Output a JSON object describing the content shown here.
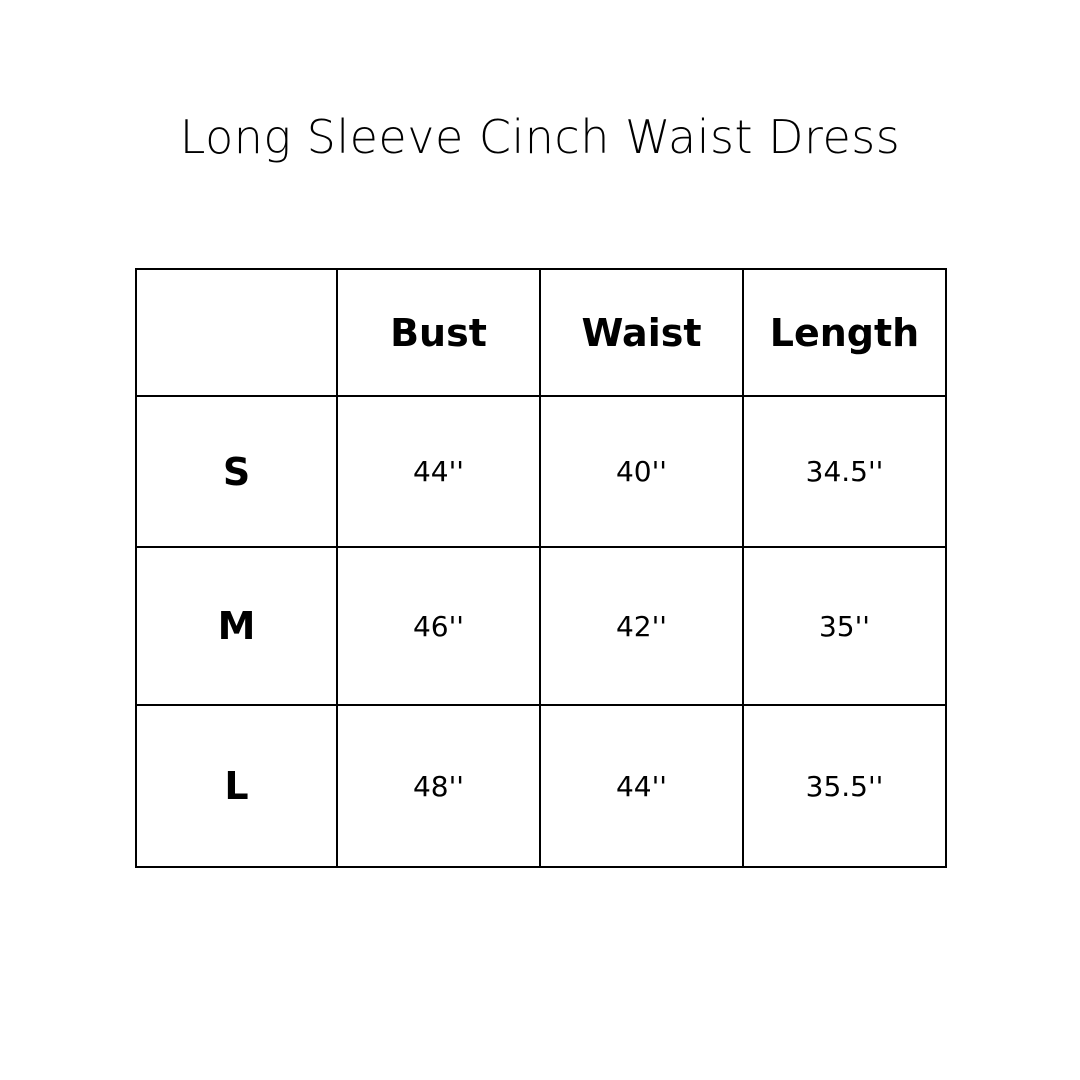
{
  "title": "Long Sleeve Cinch Waist Dress",
  "headers": [
    "",
    "Bust",
    "Waist",
    "Length"
  ],
  "rows": [
    {
      "size": "S",
      "values": [
        "44''",
        "40''",
        "34.5''"
      ]
    },
    {
      "size": "M",
      "values": [
        "46''",
        "42''",
        "35''"
      ]
    },
    {
      "size": "L",
      "values": [
        "48''",
        "44''",
        "35.5''"
      ]
    }
  ]
}
